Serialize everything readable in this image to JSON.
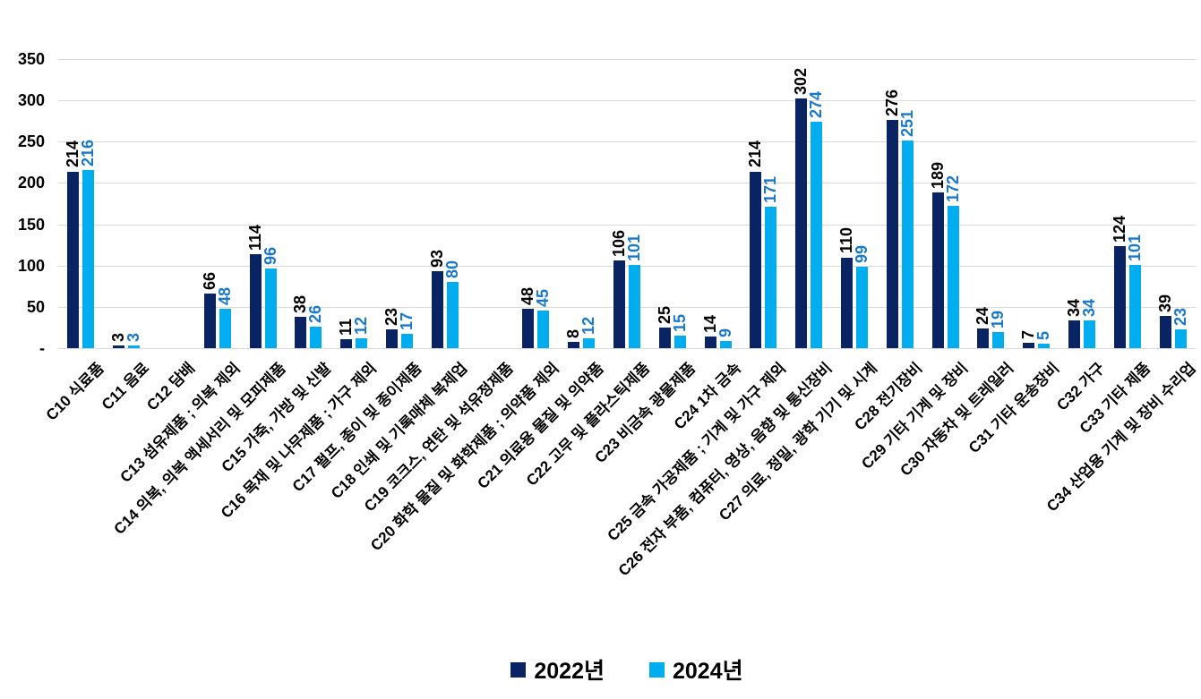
{
  "chart_data": {
    "type": "bar",
    "title": "",
    "xlabel": "",
    "ylabel": "",
    "categories": [
      "C10 식료품",
      "C11 음료",
      "C12 담배",
      "C13 섬유제품 ; 의복 제외",
      "C14 의복, 의복 액세서리 및 모피제품",
      "C15 가죽, 가방 및 신발",
      "C16 목재 및 나무제품 ; 가구 제외",
      "C17 펄프, 종이 및 종이제품",
      "C18 인쇄 및 기록매체 복제업",
      "C19 코크스, 연탄 및 석유정제품",
      "C20 화학 물질 및 화학제품 ; 의약품 제외",
      "C21 의료용 물질 및 의약품",
      "C22 고무 및 플라스틱제품",
      "C23 비금속 광물제품",
      "C24 1차 금속",
      "C25 금속 가공제품 ; 기계 및 가구 제외",
      "C26 전자 부품, 컴퓨터, 영상, 음향 및 통신장비",
      "C27 의료, 정밀, 광학 기기 및 시계",
      "C28 전기장비",
      "C29 기타 기계 및 장비",
      "C30 자동차 및 트레일러",
      "C31 기타 운송장비",
      "C32 가구",
      "C33 기타 제품",
      "C34 산업용 기계 및 장비 수리업"
    ],
    "series": [
      {
        "name": "2022년",
        "color": "#0A2463",
        "label_color": "#000000",
        "values": [
          214,
          3,
          null,
          66,
          114,
          38,
          11,
          23,
          93,
          null,
          48,
          8,
          106,
          25,
          14,
          214,
          302,
          110,
          276,
          189,
          24,
          7,
          34,
          124,
          39
        ]
      },
      {
        "name": "2024년",
        "color": "#00AEEF",
        "label_color": "#1878CC",
        "values": [
          216,
          3,
          null,
          48,
          96,
          26,
          12,
          17,
          80,
          null,
          45,
          12,
          101,
          15,
          9,
          171,
          274,
          99,
          251,
          172,
          19,
          5,
          34,
          101,
          23
        ]
      }
    ],
    "ylim": [
      0,
      350
    ],
    "ytick_step": 50,
    "ytick_labels": [
      "-",
      "50",
      "100",
      "150",
      "200",
      "250",
      "300",
      "350"
    ],
    "grid": true,
    "gridline_color": "#D9D9D9",
    "legend_position": "bottom"
  }
}
